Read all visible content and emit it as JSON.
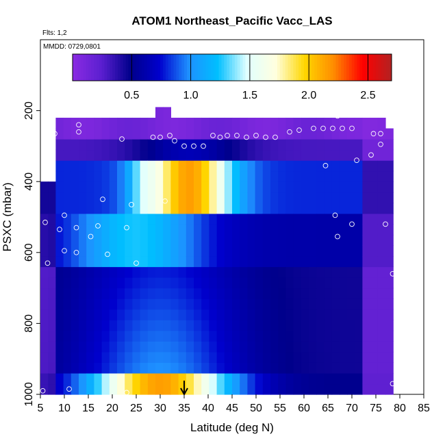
{
  "chart_data": {
    "type": "heatmap",
    "title": "ATOM1 Northeast_Pacific Vacc_LAS",
    "flights_note": "Flts: 1,2",
    "date_note": "MMDD: 0729,0801",
    "xlabel": "Latitude (deg N)",
    "ylabel": "PSXC (mbar)",
    "xlim": [
      5,
      85
    ],
    "ylim": [
      1000,
      0
    ],
    "x_ticks": [
      "5",
      "10",
      "15",
      "20",
      "25",
      "30",
      "35",
      "40",
      "45",
      "50",
      "55",
      "60",
      "65",
      "70",
      "75",
      "80",
      "85"
    ],
    "y_ticks": [
      "200",
      "400",
      "600",
      "800",
      "1000"
    ],
    "colorbar": {
      "range": [
        0,
        2.7
      ],
      "ticks": [
        "0.5",
        "1.0",
        "1.5",
        "2.0",
        "2.5"
      ],
      "tick_values": [
        0.5,
        1.0,
        1.5,
        2.0,
        2.5
      ],
      "stops": [
        "#8a2be2",
        "#5b1fd0",
        "#00008b",
        "#0000cd",
        "#1e90ff",
        "#00bfff",
        "#e0ffff",
        "#ffffe0",
        "#ffd700",
        "#ff8c00",
        "#ff0000",
        "#b22222"
      ]
    },
    "marker": {
      "latitude": 35,
      "symbol": "down-arrow"
    },
    "lat_edges": [
      5,
      78
    ],
    "pressure_levels": [
      1000,
      950,
      900,
      850,
      800,
      750,
      700,
      650,
      600,
      550,
      500,
      450,
      400,
      350,
      300,
      250,
      200
    ],
    "grid": false,
    "legend": "colorbar-top",
    "points": [
      [
        5.5,
        990
      ],
      [
        6,
        515
      ],
      [
        6.5,
        630
      ],
      [
        7.5,
        240
      ],
      [
        8,
        265
      ],
      [
        9,
        535
      ],
      [
        10,
        495
      ],
      [
        10,
        595
      ],
      [
        11,
        985
      ],
      [
        12.5,
        530
      ],
      [
        12.5,
        600
      ],
      [
        13,
        240
      ],
      [
        13,
        260
      ],
      [
        15.5,
        555
      ],
      [
        17,
        525
      ],
      [
        18,
        450
      ],
      [
        19,
        605
      ],
      [
        21,
        210
      ],
      [
        22,
        280
      ],
      [
        23,
        530
      ],
      [
        23,
        995
      ],
      [
        24,
        465
      ],
      [
        25,
        630
      ],
      [
        27,
        200
      ],
      [
        28.5,
        275
      ],
      [
        30,
        275
      ],
      [
        31,
        455
      ],
      [
        32,
        270
      ],
      [
        33,
        285
      ],
      [
        35,
        300
      ],
      [
        37,
        300
      ],
      [
        39,
        300
      ],
      [
        41,
        270
      ],
      [
        42.5,
        275
      ],
      [
        44,
        270
      ],
      [
        46,
        270
      ],
      [
        48,
        275
      ],
      [
        50,
        270
      ],
      [
        52,
        275
      ],
      [
        54,
        275
      ],
      [
        57,
        260
      ],
      [
        59,
        255
      ],
      [
        62,
        250
      ],
      [
        64,
        250
      ],
      [
        66,
        250
      ],
      [
        67,
        215
      ],
      [
        68,
        250
      ],
      [
        70,
        250
      ],
      [
        71,
        340
      ],
      [
        74,
        325
      ],
      [
        74.5,
        265
      ],
      [
        76,
        265
      ],
      [
        76,
        295
      ],
      [
        64.5,
        355
      ],
      [
        66.5,
        495
      ],
      [
        67,
        555
      ],
      [
        70,
        520
      ],
      [
        77,
        520
      ],
      [
        78.5,
        660
      ],
      [
        78.5,
        970
      ]
    ]
  }
}
